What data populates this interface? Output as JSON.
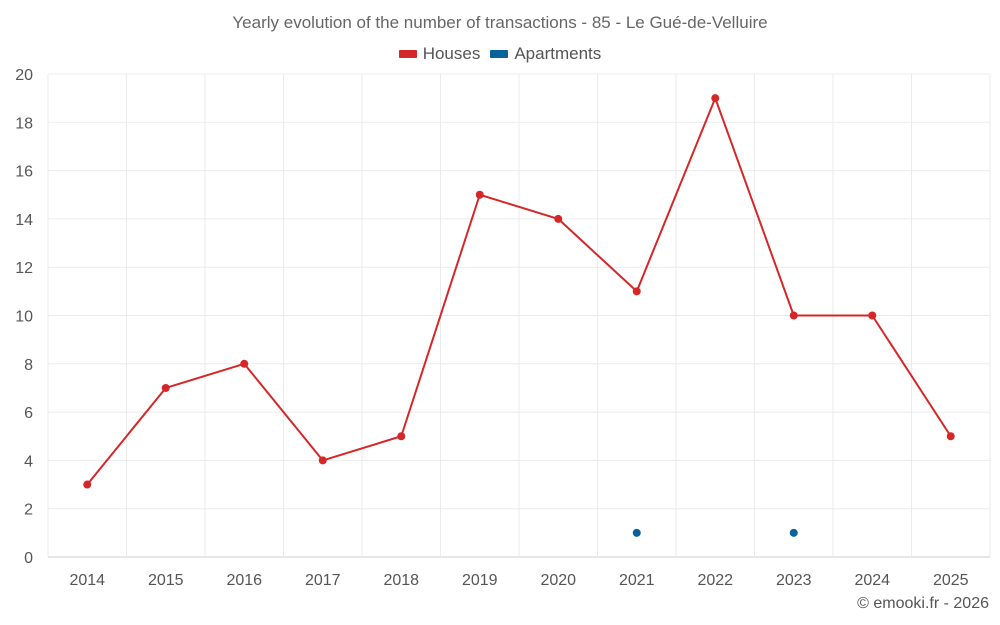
{
  "chart_data": {
    "type": "line",
    "title": "Yearly evolution of the number of transactions - 85 - Le Gué-de-Velluire",
    "xlabel": "",
    "ylabel": "",
    "categories": [
      "2014",
      "2015",
      "2016",
      "2017",
      "2018",
      "2019",
      "2020",
      "2021",
      "2022",
      "2023",
      "2024",
      "2025"
    ],
    "ylim": [
      0,
      20
    ],
    "yticks": [
      0,
      2,
      4,
      6,
      8,
      10,
      12,
      14,
      16,
      18,
      20
    ],
    "grid": true,
    "legend_position": "top-center",
    "series": [
      {
        "name": "Houses",
        "color": "#d62728",
        "values": [
          3,
          7,
          8,
          4,
          5,
          15,
          14,
          11,
          19,
          10,
          10,
          5
        ]
      },
      {
        "name": "Apartments",
        "color": "#08639c",
        "values": [
          null,
          null,
          null,
          null,
          null,
          null,
          null,
          1,
          null,
          1,
          null,
          null
        ]
      }
    ]
  },
  "footer": {
    "credit": "© emooki.fr - 2026"
  }
}
